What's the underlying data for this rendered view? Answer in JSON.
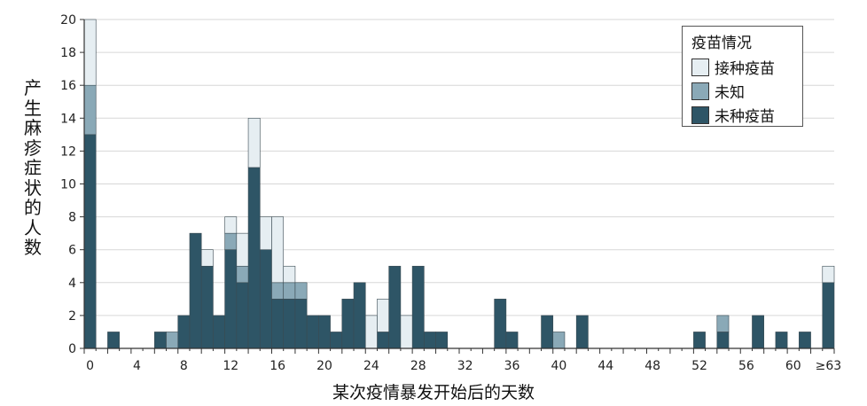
{
  "chart_data": {
    "type": "bar",
    "stacked": true,
    "title": "",
    "xlabel": "某次疫情暴发开始后的天数",
    "ylabel": "产生麻疹症状的人数",
    "ylim": [
      0,
      20
    ],
    "yticks": [
      0,
      2,
      4,
      6,
      8,
      10,
      12,
      14,
      16,
      18,
      20
    ],
    "xticks": [
      "0",
      "4",
      "8",
      "12",
      "16",
      "20",
      "24",
      "28",
      "32",
      "36",
      "40",
      "44",
      "48",
      "52",
      "56",
      "60",
      "≥63"
    ],
    "grid": true,
    "legend": {
      "title": "疫苗情况",
      "position": "top-right"
    },
    "categories": [
      0,
      1,
      2,
      3,
      4,
      5,
      6,
      7,
      8,
      9,
      10,
      11,
      12,
      13,
      14,
      15,
      16,
      17,
      18,
      19,
      20,
      21,
      22,
      23,
      24,
      25,
      26,
      27,
      28,
      29,
      30,
      31,
      32,
      33,
      34,
      35,
      36,
      37,
      38,
      39,
      40,
      41,
      42,
      43,
      44,
      45,
      46,
      47,
      48,
      49,
      50,
      51,
      52,
      53,
      54,
      55,
      56,
      57,
      58,
      59,
      60,
      61,
      62,
      63
    ],
    "series": [
      {
        "name": "未种疫苗",
        "color": "#2e5566",
        "values": [
          13,
          0,
          1,
          0,
          0,
          0,
          1,
          0,
          2,
          7,
          5,
          2,
          6,
          4,
          11,
          6,
          3,
          3,
          3,
          2,
          2,
          1,
          3,
          4,
          0,
          1,
          5,
          0,
          5,
          1,
          1,
          0,
          0,
          0,
          0,
          3,
          1,
          0,
          0,
          2,
          0,
          0,
          2,
          0,
          0,
          0,
          0,
          0,
          0,
          0,
          0,
          0,
          1,
          0,
          1,
          0,
          0,
          2,
          0,
          1,
          0,
          1,
          0,
          4
        ]
      },
      {
        "name": "未知",
        "color": "#8aa9b7",
        "values": [
          3,
          0,
          0,
          0,
          0,
          0,
          0,
          1,
          0,
          0,
          0,
          0,
          1,
          1,
          0,
          0,
          1,
          1,
          1,
          0,
          0,
          0,
          0,
          0,
          0,
          0,
          0,
          0,
          0,
          0,
          0,
          0,
          0,
          0,
          0,
          0,
          0,
          0,
          0,
          0,
          1,
          0,
          0,
          0,
          0,
          0,
          0,
          0,
          0,
          0,
          0,
          0,
          0,
          0,
          1,
          0,
          0,
          0,
          0,
          0,
          0,
          0,
          0,
          0
        ]
      },
      {
        "name": "接种疫苗",
        "color": "#e6eef2",
        "values": [
          4,
          0,
          0,
          0,
          0,
          0,
          0,
          0,
          0,
          0,
          1,
          0,
          1,
          2,
          3,
          2,
          4,
          1,
          0,
          0,
          0,
          0,
          0,
          0,
          2,
          2,
          0,
          2,
          0,
          0,
          0,
          0,
          0,
          0,
          0,
          0,
          0,
          0,
          0,
          0,
          0,
          0,
          0,
          0,
          0,
          0,
          0,
          0,
          0,
          0,
          0,
          0,
          0,
          0,
          0,
          0,
          0,
          0,
          0,
          0,
          0,
          0,
          0,
          1
        ]
      }
    ]
  }
}
